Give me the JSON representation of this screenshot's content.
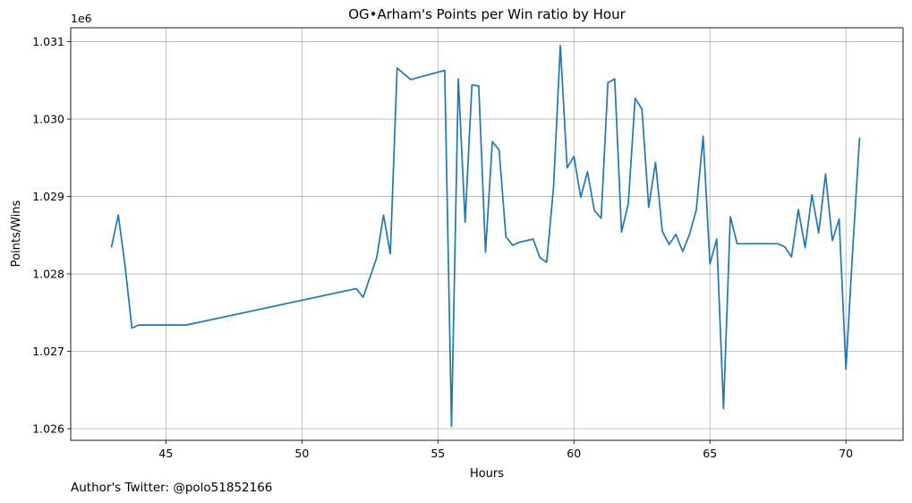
{
  "chart_data": {
    "type": "line",
    "title": "OG•Arham's Points per Win ratio by Hour",
    "xlabel": "Hours",
    "ylabel": "Points/Wins",
    "y_offset_label": "1e6",
    "xlim": [
      41.5,
      72.1
    ],
    "ylim": [
      1.02585,
      1.03118
    ],
    "x_ticks": [
      {
        "value": 45,
        "label": "45"
      },
      {
        "value": 50,
        "label": "50"
      },
      {
        "value": 55,
        "label": "55"
      },
      {
        "value": 60,
        "label": "60"
      },
      {
        "value": 65,
        "label": "65"
      },
      {
        "value": 70,
        "label": "70"
      }
    ],
    "y_ticks": [
      {
        "value": 1.026,
        "label": "1.026"
      },
      {
        "value": 1.027,
        "label": "1.027"
      },
      {
        "value": 1.028,
        "label": "1.028"
      },
      {
        "value": 1.029,
        "label": "1.029"
      },
      {
        "value": 1.03,
        "label": "1.030"
      },
      {
        "value": 1.031,
        "label": "1.031"
      }
    ],
    "grid": true,
    "line_color": "#1f77b4",
    "series": [
      {
        "points": [
          [
            43.0,
            1.02835
          ],
          [
            43.25,
            1.02876
          ],
          [
            43.5,
            1.0281
          ],
          [
            43.75,
            1.0273
          ],
          [
            44.0,
            1.02734
          ],
          [
            45.75,
            1.02734
          ],
          [
            52.0,
            1.02781
          ],
          [
            52.25,
            1.0277
          ],
          [
            52.75,
            1.02821
          ],
          [
            53.0,
            1.02876
          ],
          [
            53.25,
            1.02826
          ],
          [
            53.5,
            1.03066
          ],
          [
            54.0,
            1.03051
          ],
          [
            55.25,
            1.03063
          ],
          [
            55.5,
            1.02603
          ],
          [
            55.75,
            1.03052
          ],
          [
            56.0,
            1.02867
          ],
          [
            56.25,
            1.03044
          ],
          [
            56.5,
            1.03043
          ],
          [
            56.75,
            1.02828
          ],
          [
            57.0,
            1.02971
          ],
          [
            57.25,
            1.0296
          ],
          [
            57.5,
            1.02848
          ],
          [
            57.75,
            1.02837
          ],
          [
            58.0,
            1.02841
          ],
          [
            58.5,
            1.02845
          ],
          [
            58.75,
            1.02821
          ],
          [
            59.0,
            1.02815
          ],
          [
            59.25,
            1.02912
          ],
          [
            59.5,
            1.03095
          ],
          [
            59.75,
            1.02937
          ],
          [
            60.0,
            1.02952
          ],
          [
            60.25,
            1.02899
          ],
          [
            60.5,
            1.02932
          ],
          [
            60.75,
            1.02882
          ],
          [
            61.0,
            1.02872
          ],
          [
            61.25,
            1.03047
          ],
          [
            61.5,
            1.03052
          ],
          [
            61.75,
            1.02854
          ],
          [
            62.0,
            1.02891
          ],
          [
            62.25,
            1.03027
          ],
          [
            62.5,
            1.03013
          ],
          [
            62.75,
            1.02886
          ],
          [
            63.0,
            1.02944
          ],
          [
            63.25,
            1.02855
          ],
          [
            63.5,
            1.02838
          ],
          [
            63.75,
            1.02851
          ],
          [
            64.0,
            1.02829
          ],
          [
            64.25,
            1.02851
          ],
          [
            64.5,
            1.02883
          ],
          [
            64.75,
            1.02978
          ],
          [
            65.0,
            1.02813
          ],
          [
            65.25,
            1.02845
          ],
          [
            65.5,
            1.02626
          ],
          [
            65.75,
            1.02874
          ],
          [
            66.0,
            1.02839
          ],
          [
            67.5,
            1.02839
          ],
          [
            67.75,
            1.02835
          ],
          [
            68.0,
            1.02822
          ],
          [
            68.25,
            1.02883
          ],
          [
            68.5,
            1.02834
          ],
          [
            68.75,
            1.02902
          ],
          [
            69.0,
            1.02853
          ],
          [
            69.25,
            1.02929
          ],
          [
            69.5,
            1.02843
          ],
          [
            69.75,
            1.02871
          ],
          [
            70.0,
            1.02677
          ],
          [
            70.25,
            1.02832
          ],
          [
            70.5,
            1.02975
          ]
        ]
      }
    ]
  },
  "footer": {
    "author_note": "Author's Twitter: @polo51852166"
  }
}
